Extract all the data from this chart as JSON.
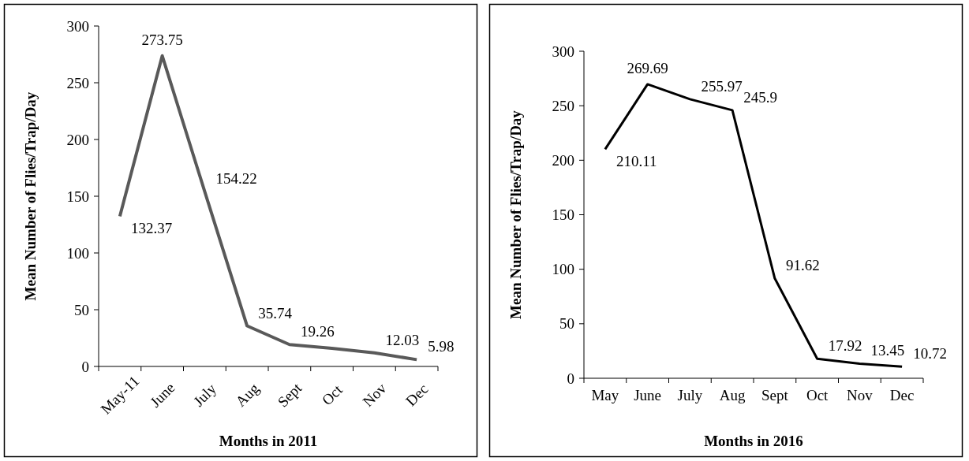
{
  "chart_data": [
    {
      "type": "line",
      "xlabel": "Months in 2011",
      "ylabel": "Mean Number of Flies/Trap/Day",
      "categories": [
        "May-11",
        "June",
        "July",
        "Aug",
        "Sept",
        "Oct",
        "Nov",
        "Dec"
      ],
      "values": [
        132.37,
        273.75,
        154.22,
        35.74,
        19.26,
        16,
        12.03,
        5.98
      ],
      "value_labels": [
        "132.37",
        "273.75",
        "154.22",
        "35.74",
        "19.26",
        null,
        "12.03",
        "5.98"
      ],
      "color": "#595959",
      "ylim": [
        0,
        300
      ],
      "yticks": [
        0,
        50,
        100,
        150,
        200,
        250,
        300
      ]
    },
    {
      "type": "line",
      "xlabel": "Months in 2016",
      "ylabel": "Mean Number of Flies/Trap/Day",
      "categories": [
        "May",
        "June",
        "July",
        "Aug",
        "Sept",
        "Oct",
        "Nov",
        "Dec"
      ],
      "values": [
        210.11,
        269.69,
        255.97,
        245.9,
        91.62,
        17.92,
        13.45,
        10.72
      ],
      "data_labels": true,
      "color": "#000000",
      "ylim": [
        0,
        300
      ],
      "yticks": [
        0,
        50,
        100,
        150,
        200,
        250,
        300
      ]
    }
  ]
}
